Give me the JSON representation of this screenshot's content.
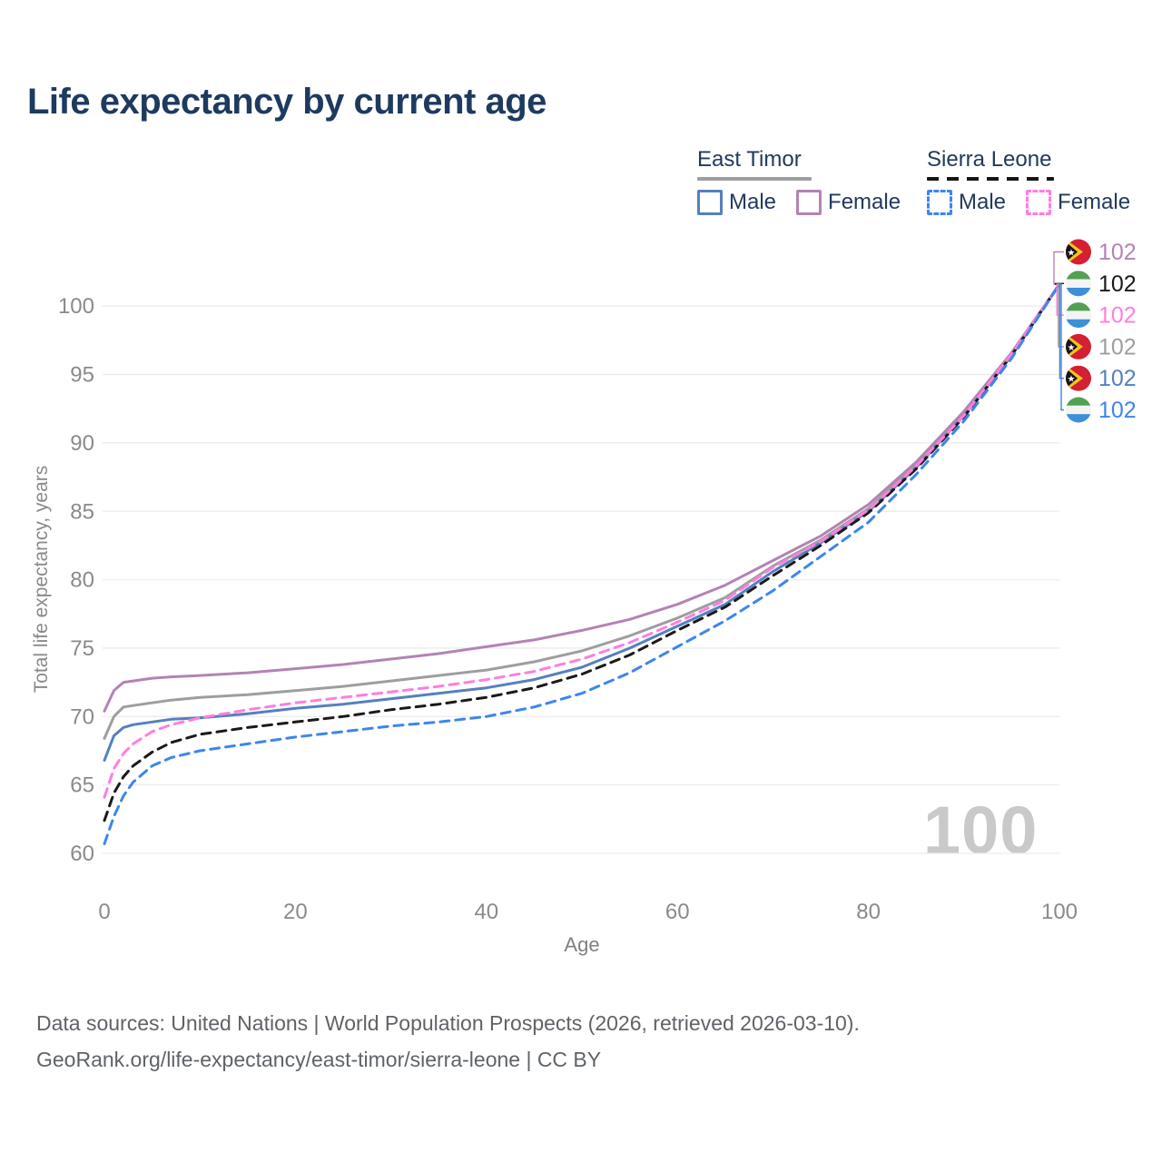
{
  "title": "Life expectancy by current age",
  "legend": {
    "groups": [
      {
        "name": "East Timor",
        "line_style": "solid",
        "line_color": "#9e9e9e",
        "items": [
          {
            "label": "Male",
            "color": "#5580bf",
            "style": "solid"
          },
          {
            "label": "Female",
            "color": "#b383b3",
            "style": "solid"
          }
        ]
      },
      {
        "name": "Sierra Leone",
        "line_style": "dashed",
        "line_color": "#151515",
        "items": [
          {
            "label": "Male",
            "color": "#3d85f0",
            "style": "dashed"
          },
          {
            "label": "Female",
            "color": "#ff7edd",
            "style": "dashed"
          }
        ]
      }
    ]
  },
  "chart_data": {
    "type": "line",
    "title": "Life expectancy by current age",
    "xlabel": "Age",
    "ylabel": "Total life expectancy, years",
    "xlim": [
      0,
      100
    ],
    "ylim": [
      58.5,
      103.5
    ],
    "x_ticks": [
      0,
      20,
      40,
      60,
      80,
      100
    ],
    "y_ticks": [
      60,
      65,
      70,
      75,
      80,
      85,
      90,
      95,
      100
    ],
    "grid": "horizontal",
    "legend_position": "top-right",
    "watermark": "100",
    "x": [
      0,
      1,
      2,
      3,
      5,
      7,
      10,
      15,
      20,
      25,
      30,
      35,
      40,
      45,
      50,
      55,
      60,
      65,
      70,
      75,
      80,
      85,
      90,
      95,
      100
    ],
    "series": [
      {
        "name": "East Timor Both sexes",
        "country": "East Timor",
        "sex": "both",
        "color": "#9e9e9e",
        "dash": false,
        "values": [
          68.4,
          70.0,
          70.7,
          70.8,
          71.0,
          71.2,
          71.4,
          71.6,
          71.9,
          72.2,
          72.6,
          73.0,
          73.4,
          74.0,
          74.8,
          75.9,
          77.2,
          78.7,
          81.0,
          82.9,
          85.2,
          88.4,
          92.1,
          96.5,
          101.6
        ]
      },
      {
        "name": "East Timor Female",
        "country": "East Timor",
        "sex": "female",
        "color": "#b383b3",
        "dash": false,
        "values": [
          70.4,
          71.9,
          72.5,
          72.6,
          72.8,
          72.9,
          73.0,
          73.2,
          73.5,
          73.8,
          74.2,
          74.6,
          75.1,
          75.6,
          76.3,
          77.1,
          78.2,
          79.6,
          81.4,
          83.2,
          85.5,
          88.6,
          92.3,
          96.6,
          101.6
        ]
      },
      {
        "name": "East Timor Male",
        "country": "East Timor",
        "sex": "male",
        "color": "#5580bf",
        "dash": false,
        "values": [
          66.8,
          68.6,
          69.2,
          69.4,
          69.6,
          69.8,
          69.9,
          70.2,
          70.6,
          70.9,
          71.3,
          71.7,
          72.1,
          72.7,
          73.6,
          75.0,
          76.6,
          78.2,
          80.6,
          82.7,
          85.0,
          88.2,
          92.0,
          96.4,
          101.6
        ]
      },
      {
        "name": "Sierra Leone Both sexes",
        "country": "Sierra Leone",
        "sex": "both",
        "color": "#1a1a1a",
        "dash": true,
        "values": [
          62.4,
          64.4,
          65.6,
          66.4,
          67.4,
          68.1,
          68.7,
          69.2,
          69.6,
          70.0,
          70.5,
          70.9,
          71.4,
          72.1,
          73.1,
          74.5,
          76.3,
          78.0,
          80.3,
          82.5,
          84.9,
          88.1,
          91.9,
          96.4,
          101.6
        ]
      },
      {
        "name": "Sierra Leone Female",
        "country": "Sierra Leone",
        "sex": "female",
        "color": "#ff7edd",
        "dash": true,
        "values": [
          64.1,
          66.2,
          67.3,
          68.0,
          68.9,
          69.4,
          69.9,
          70.5,
          71.0,
          71.4,
          71.8,
          72.2,
          72.7,
          73.3,
          74.2,
          75.4,
          76.9,
          78.5,
          80.9,
          82.8,
          85.1,
          88.3,
          92.0,
          96.5,
          101.6
        ]
      },
      {
        "name": "Sierra Leone Male",
        "country": "Sierra Leone",
        "sex": "male",
        "color": "#3d85f0",
        "dash": true,
        "values": [
          60.7,
          62.7,
          64.2,
          65.2,
          66.4,
          67.0,
          67.5,
          68.0,
          68.5,
          68.9,
          69.3,
          69.6,
          70.0,
          70.7,
          71.7,
          73.2,
          75.1,
          77.0,
          79.2,
          81.7,
          84.2,
          87.7,
          91.6,
          96.2,
          101.6
        ]
      }
    ],
    "end_labels": [
      {
        "value": "102",
        "series": "East Timor Female",
        "flag": "east-timor",
        "color": "#b383b3"
      },
      {
        "value": "102",
        "series": "Sierra Leone Both sexes",
        "flag": "sierra-leone",
        "color": "#1a1a1a"
      },
      {
        "value": "102",
        "series": "Sierra Leone Female",
        "flag": "sierra-leone",
        "color": "#ff7edd"
      },
      {
        "value": "102",
        "series": "East Timor Both sexes",
        "flag": "east-timor",
        "color": "#9e9e9e"
      },
      {
        "value": "102",
        "series": "East Timor Male",
        "flag": "east-timor",
        "color": "#5580bf"
      },
      {
        "value": "102",
        "series": "Sierra Leone Male",
        "flag": "sierra-leone",
        "color": "#3d85f0"
      }
    ],
    "flag_colors": {
      "east_timor": {
        "red": "#d51f32",
        "yellow": "#f5c51d",
        "black": "#17131b",
        "star": "#ffffff"
      },
      "sierra_leone": {
        "green": "#53a053",
        "white": "#f4f4f2",
        "blue": "#3e8ed8"
      }
    }
  },
  "footer": {
    "line1": "Data sources: United Nations | World Population Prospects (2026, retrieved 2026-03-10).",
    "line2": "GeoRank.org/life-expectancy/east-timor/sierra-leone | CC BY"
  }
}
